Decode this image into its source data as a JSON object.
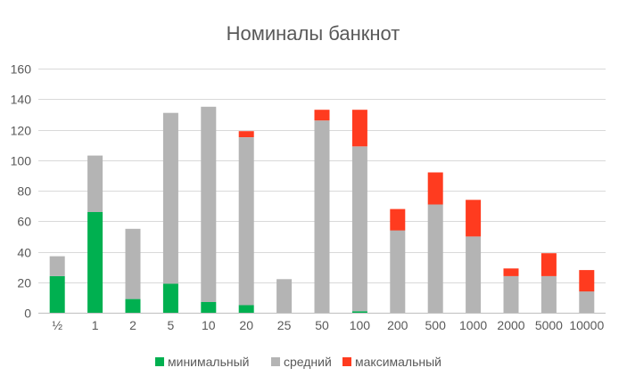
{
  "chart_data": {
    "type": "bar",
    "stacked": true,
    "title": "Номиналы банкнот",
    "xlabel": "",
    "ylabel": "",
    "ylim": [
      0,
      160
    ],
    "yticks": [
      0,
      20,
      40,
      60,
      80,
      100,
      120,
      140,
      160
    ],
    "grid": true,
    "legend_position": "bottom",
    "categories": [
      "½",
      "1",
      "2",
      "5",
      "10",
      "20",
      "25",
      "50",
      "100",
      "200",
      "500",
      "1000",
      "2000",
      "5000",
      "10000"
    ],
    "series": [
      {
        "name": "минимальный",
        "color": "#00b050",
        "values": [
          24,
          66,
          9,
          19,
          7,
          5,
          0,
          0,
          1,
          0,
          0,
          0,
          0,
          0,
          0
        ]
      },
      {
        "name": "средний",
        "color": "#b4b4b4",
        "values": [
          13,
          37,
          46,
          112,
          128,
          110,
          22,
          126,
          108,
          54,
          71,
          50,
          24,
          24,
          14
        ]
      },
      {
        "name": "максимальный",
        "color": "#ff3b1f",
        "values": [
          0,
          0,
          0,
          0,
          0,
          4,
          0,
          7,
          24,
          14,
          21,
          24,
          5,
          15,
          14
        ]
      }
    ]
  }
}
